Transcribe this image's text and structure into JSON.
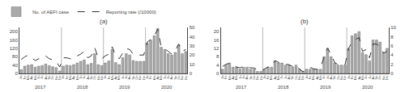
{
  "chart_data": [
    {
      "type": "bar",
      "title": "(a)",
      "categories": [
        "Ja",
        "Fe",
        "Ma",
        "Ap",
        "Ma",
        "Ju",
        "Ju",
        "Au",
        "Se",
        "Oc",
        "No",
        "De",
        "Ja",
        "Fe",
        "Ma",
        "Ap",
        "Ma",
        "Ju",
        "Ju",
        "Au",
        "Se",
        "Oc",
        "No",
        "De",
        "Ja",
        "Fe",
        "Ma",
        "Ap",
        "Ma",
        "Ju",
        "Ju",
        "Au",
        "Se",
        "Oc",
        "No",
        "De",
        "Ja",
        "Fe",
        "Ma",
        "Ap",
        "Ma",
        "Ju",
        "Ju",
        "Au",
        "Se",
        "Oc",
        "No",
        "De"
      ],
      "annotations": [
        "2017",
        "2018",
        "2019",
        "2020"
      ],
      "series": [
        {
          "name": "No. of AEFI case",
          "type": "bar",
          "color": "#aaaaaa",
          "values": [
            18,
            35,
            40,
            42,
            30,
            35,
            38,
            45,
            38,
            32,
            28,
            12,
            35,
            40,
            38,
            42,
            50,
            58,
            65,
            42,
            48,
            95,
            42,
            38,
            50,
            60,
            115,
            52,
            42,
            75,
            95,
            88,
            62,
            58,
            58,
            58,
            145,
            160,
            180,
            215,
            125,
            115,
            95,
            88,
            100,
            135,
            95,
            105
          ]
        },
        {
          "name": "Reporting rate (/10000)",
          "type": "line",
          "axis": "y2",
          "color": "#333333",
          "line_style": "dashed",
          "values": [
            15,
            18,
            20,
            17,
            14,
            16,
            16,
            19,
            16,
            15,
            13,
            7,
            17,
            17,
            16,
            16,
            19,
            21,
            24,
            17,
            19,
            28,
            17,
            16,
            19,
            21,
            29,
            19,
            16,
            22,
            27,
            26,
            21,
            20,
            20,
            20,
            34,
            37,
            41,
            48,
            29,
            27,
            24,
            21,
            25,
            32,
            24,
            26
          ]
        }
      ],
      "ylim": [
        0,
        220
      ],
      "yticks": [
        0,
        40,
        80,
        120,
        160,
        200
      ],
      "y2lim": [
        0,
        50
      ],
      "y2ticks": [
        0,
        10,
        20,
        30,
        40,
        50
      ],
      "grid": false,
      "legend": "upper left"
    },
    {
      "type": "bar",
      "title": "(b)",
      "categories": [
        "Ja",
        "Fe",
        "Ma",
        "Ap",
        "Ma",
        "Ju",
        "Ju",
        "Au",
        "Se",
        "Oc",
        "No",
        "De",
        "Ja",
        "Fe",
        "Ma",
        "Ap",
        "Ma",
        "Ju",
        "Ju",
        "Au",
        "Se",
        "Oc",
        "No",
        "De",
        "Ja",
        "Fe",
        "Ma",
        "Ap",
        "Ma",
        "Ju",
        "Ju",
        "Au",
        "Se",
        "Oc",
        "No",
        "De",
        "Ja",
        "Fe",
        "Ma",
        "Ap",
        "Ma",
        "Ju",
        "Ju",
        "Au",
        "Se",
        "Oc",
        "No",
        "De"
      ],
      "annotations": [
        "2017",
        "2018",
        "2019",
        "2020"
      ],
      "series": [
        {
          "type": "bar",
          "color": "#aaaaaa",
          "values": [
            2,
            4,
            5,
            3,
            3,
            2,
            3,
            3,
            2,
            2,
            1,
            1,
            2,
            3,
            3,
            6,
            5,
            5,
            4,
            4,
            3,
            4,
            2,
            1,
            2,
            2,
            2,
            2,
            2,
            8,
            12,
            8,
            5,
            4,
            4,
            4,
            12,
            18,
            19,
            20,
            10,
            9,
            6,
            16,
            16,
            15,
            10,
            12
          ]
        },
        {
          "type": "line",
          "axis": "y2",
          "color": "#333333",
          "line_style": "dashed",
          "values": [
            1.5,
            2.0,
            2.2,
            1.8,
            1.4,
            1.2,
            1.5,
            1.6,
            1.2,
            1.2,
            0.8,
            0.4,
            1.0,
            1.4,
            1.5,
            2.8,
            2.4,
            2.4,
            2.0,
            1.9,
            1.5,
            1.9,
            0.9,
            0.4,
            0.9,
            1.3,
            1.0,
            0.9,
            1.4,
            3.5,
            5.5,
            4.2,
            2.4,
            1.9,
            1.9,
            1.9,
            5.4,
            6.8,
            7.4,
            7.8,
            4.8,
            5.2,
            3.4,
            6.4,
            6.4,
            5.8,
            4.4,
            4.8
          ]
        }
      ],
      "ylim": [
        0,
        22
      ],
      "yticks": [
        0,
        4,
        8,
        12,
        16,
        20
      ],
      "y2lim": [
        0,
        10
      ],
      "y2ticks": [
        0,
        2,
        4,
        6,
        8,
        10
      ],
      "grid": false
    }
  ]
}
